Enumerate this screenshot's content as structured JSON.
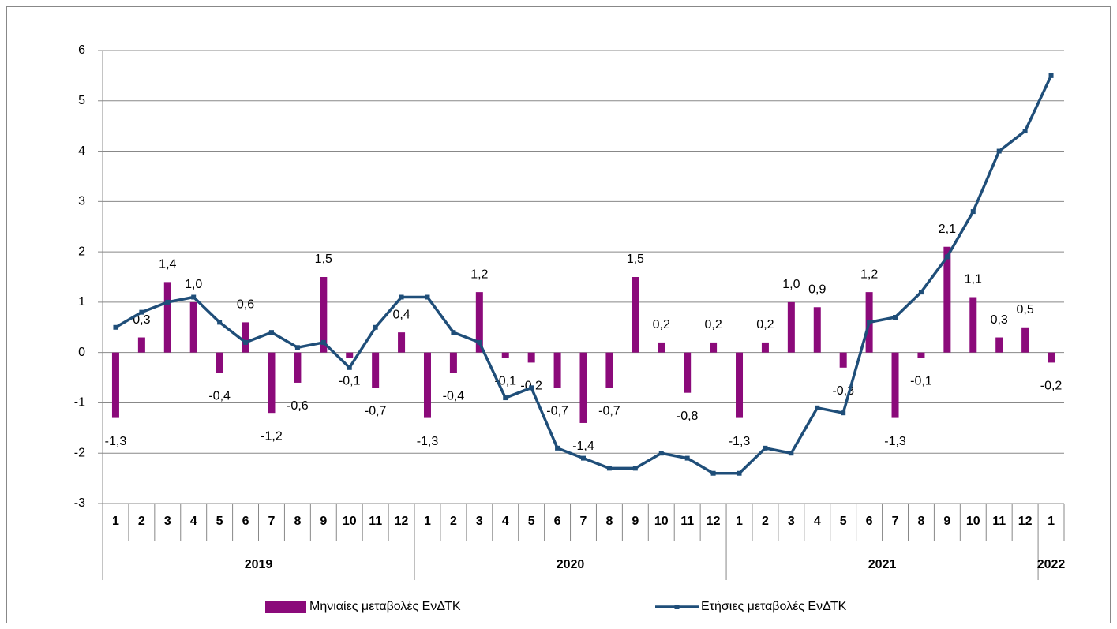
{
  "chart_data": {
    "type": "combo",
    "categories": [
      "1",
      "2",
      "3",
      "4",
      "5",
      "6",
      "7",
      "8",
      "9",
      "10",
      "11",
      "12",
      "1",
      "2",
      "3",
      "4",
      "5",
      "6",
      "7",
      "8",
      "9",
      "10",
      "11",
      "12",
      "1",
      "2",
      "3",
      "4",
      "5",
      "6",
      "7",
      "8",
      "9",
      "10",
      "11",
      "12",
      "1"
    ],
    "group_labels": [
      "2019",
      null,
      null,
      null,
      null,
      null,
      null,
      null,
      null,
      null,
      null,
      null,
      "2020",
      null,
      null,
      null,
      null,
      null,
      null,
      null,
      null,
      null,
      null,
      null,
      "2021",
      null,
      null,
      null,
      null,
      null,
      null,
      null,
      null,
      null,
      null,
      null,
      "2022"
    ],
    "series": [
      {
        "name": "Μηνιαίες μεταβολές ΕνΔΤΚ",
        "type": "bar",
        "color": "#8b0a7a",
        "values": [
          -1.3,
          0.3,
          1.4,
          1.0,
          -0.4,
          0.6,
          -1.2,
          -0.6,
          1.5,
          -0.1,
          -0.7,
          0.4,
          -1.3,
          -0.4,
          1.2,
          -0.1,
          -0.2,
          -0.7,
          -1.4,
          -0.7,
          1.5,
          0.2,
          -0.8,
          0.2,
          -1.3,
          0.2,
          1.0,
          0.9,
          -0.3,
          1.2,
          -1.3,
          -0.1,
          2.1,
          1.1,
          0.3,
          0.5,
          -0.2
        ],
        "value_labels": [
          "-1,3",
          "0,3",
          "1,4",
          "1,0",
          "-0,4",
          "0,6",
          "-1,2",
          "-0,6",
          "1,5",
          "-0,1",
          "-0,7",
          "0,4",
          "-1,3",
          "-0,4",
          "1,2",
          "-0,1",
          "-0,2",
          "-0,7",
          "-1,4",
          "-0,7",
          "1,5",
          "0,2",
          "-0,8",
          "0,2",
          "-1,3",
          "0,2",
          "1,0",
          "0,9",
          "-0,3",
          "1,2",
          "-1,3",
          "-0,1",
          "2,1",
          "1,1",
          "0,3",
          "0,5",
          "-0,2"
        ]
      },
      {
        "name": "Ετήσιες μεταβολές ΕνΔΤΚ",
        "type": "line",
        "color": "#1f4e79",
        "values": [
          0.5,
          0.8,
          1.0,
          1.1,
          0.6,
          0.2,
          0.4,
          0.1,
          0.2,
          -0.3,
          0.5,
          1.1,
          1.1,
          0.4,
          0.2,
          -0.9,
          -0.7,
          -1.9,
          -2.1,
          -2.3,
          -2.3,
          -2.0,
          -2.1,
          -2.4,
          -2.4,
          -1.9,
          -2.0,
          -1.1,
          -1.2,
          0.6,
          0.7,
          1.2,
          1.9,
          2.8,
          4.0,
          4.4,
          5.5
        ]
      }
    ],
    "ylim": [
      -3,
      6
    ],
    "yticks": [
      -3,
      -2,
      -1,
      0,
      1,
      2,
      3,
      4,
      5,
      6
    ],
    "grid": true,
    "legend": "bottom"
  }
}
